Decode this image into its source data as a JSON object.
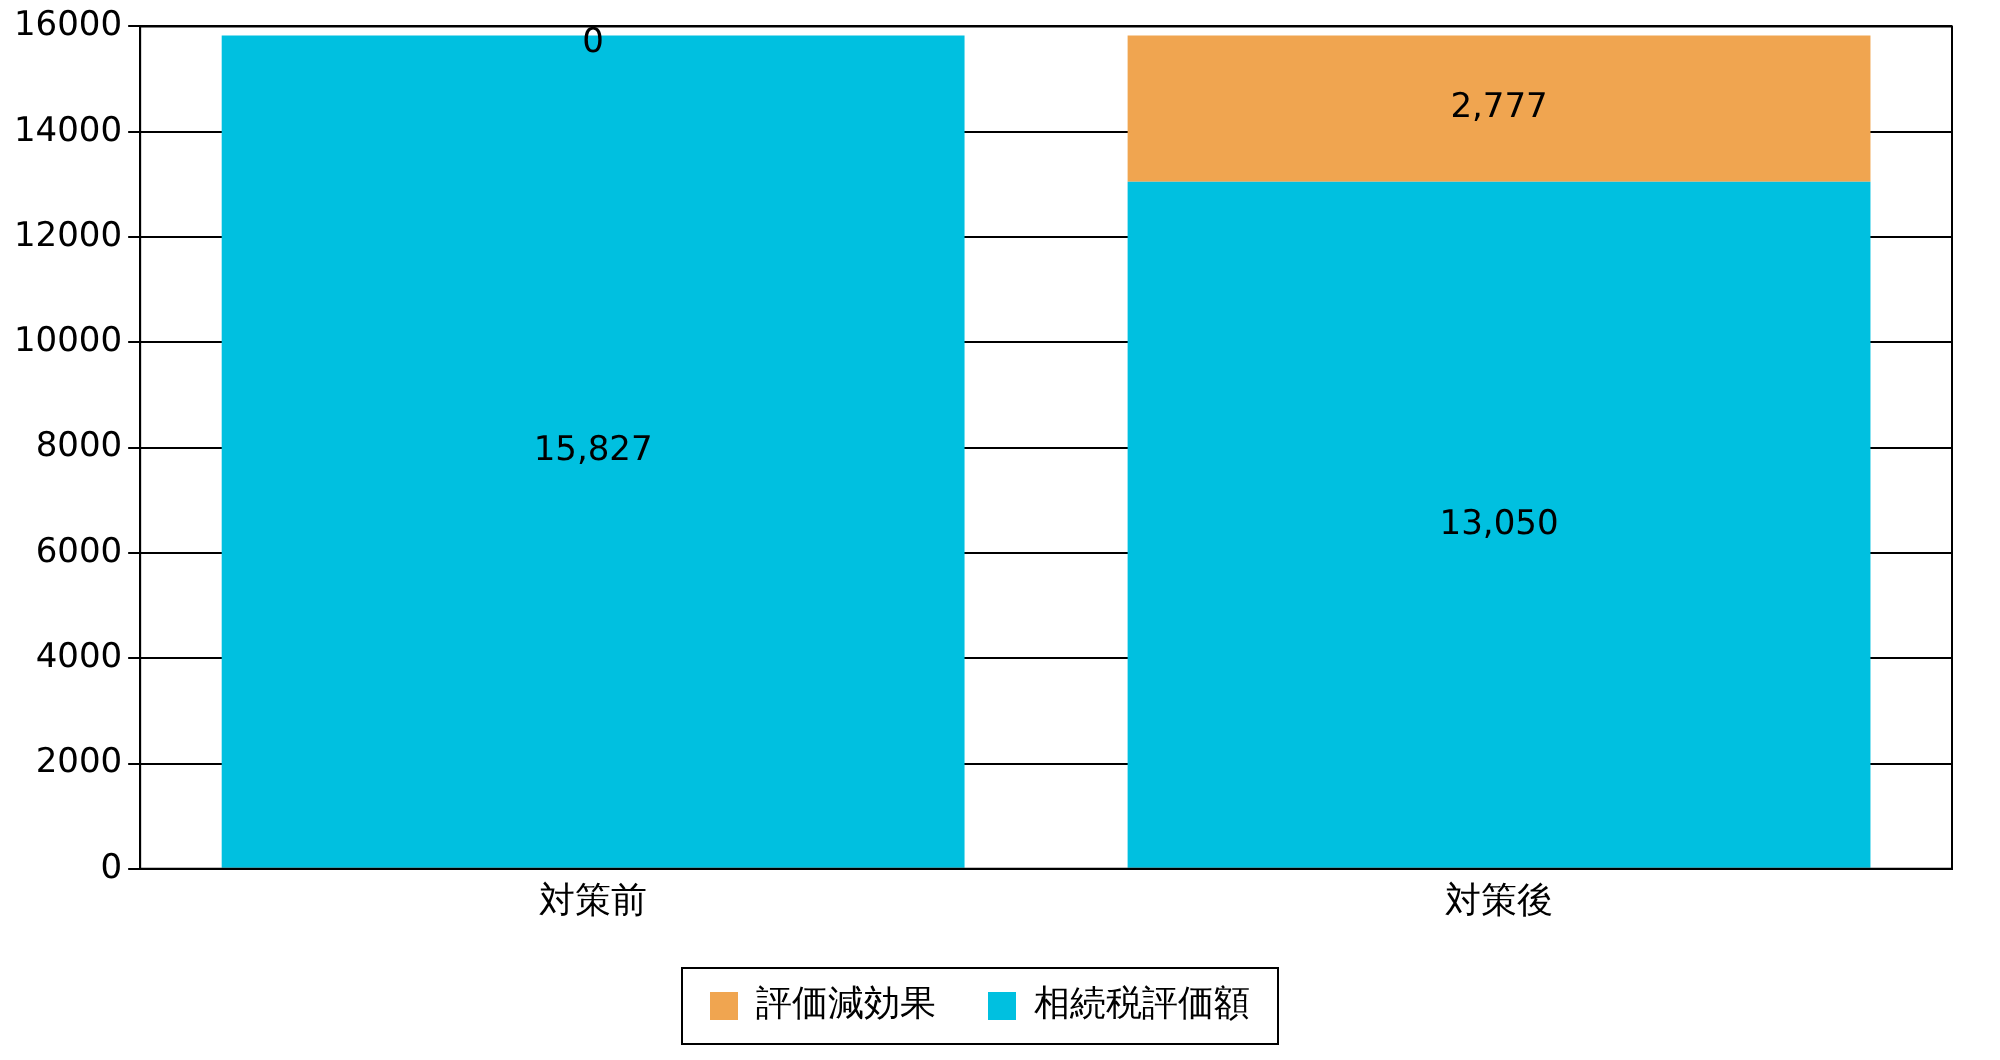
{
  "chart_data": {
    "type": "bar",
    "stacked": true,
    "categories": [
      "対策前",
      "対策後"
    ],
    "series": [
      {
        "name": "相続税評価額",
        "color": "#00c0e0",
        "values": [
          15827,
          13050
        ],
        "value_labels": [
          "15,827",
          "13,050"
        ]
      },
      {
        "name": "評価減効果",
        "color": "#f0a550",
        "values": [
          0,
          2777
        ],
        "value_labels": [
          "0",
          "2,777"
        ]
      }
    ],
    "ylim": [
      0,
      16000
    ],
    "yticks": [
      0,
      2000,
      4000,
      6000,
      8000,
      10000,
      12000,
      14000,
      16000
    ],
    "grid": "y",
    "legend": "bottom"
  }
}
